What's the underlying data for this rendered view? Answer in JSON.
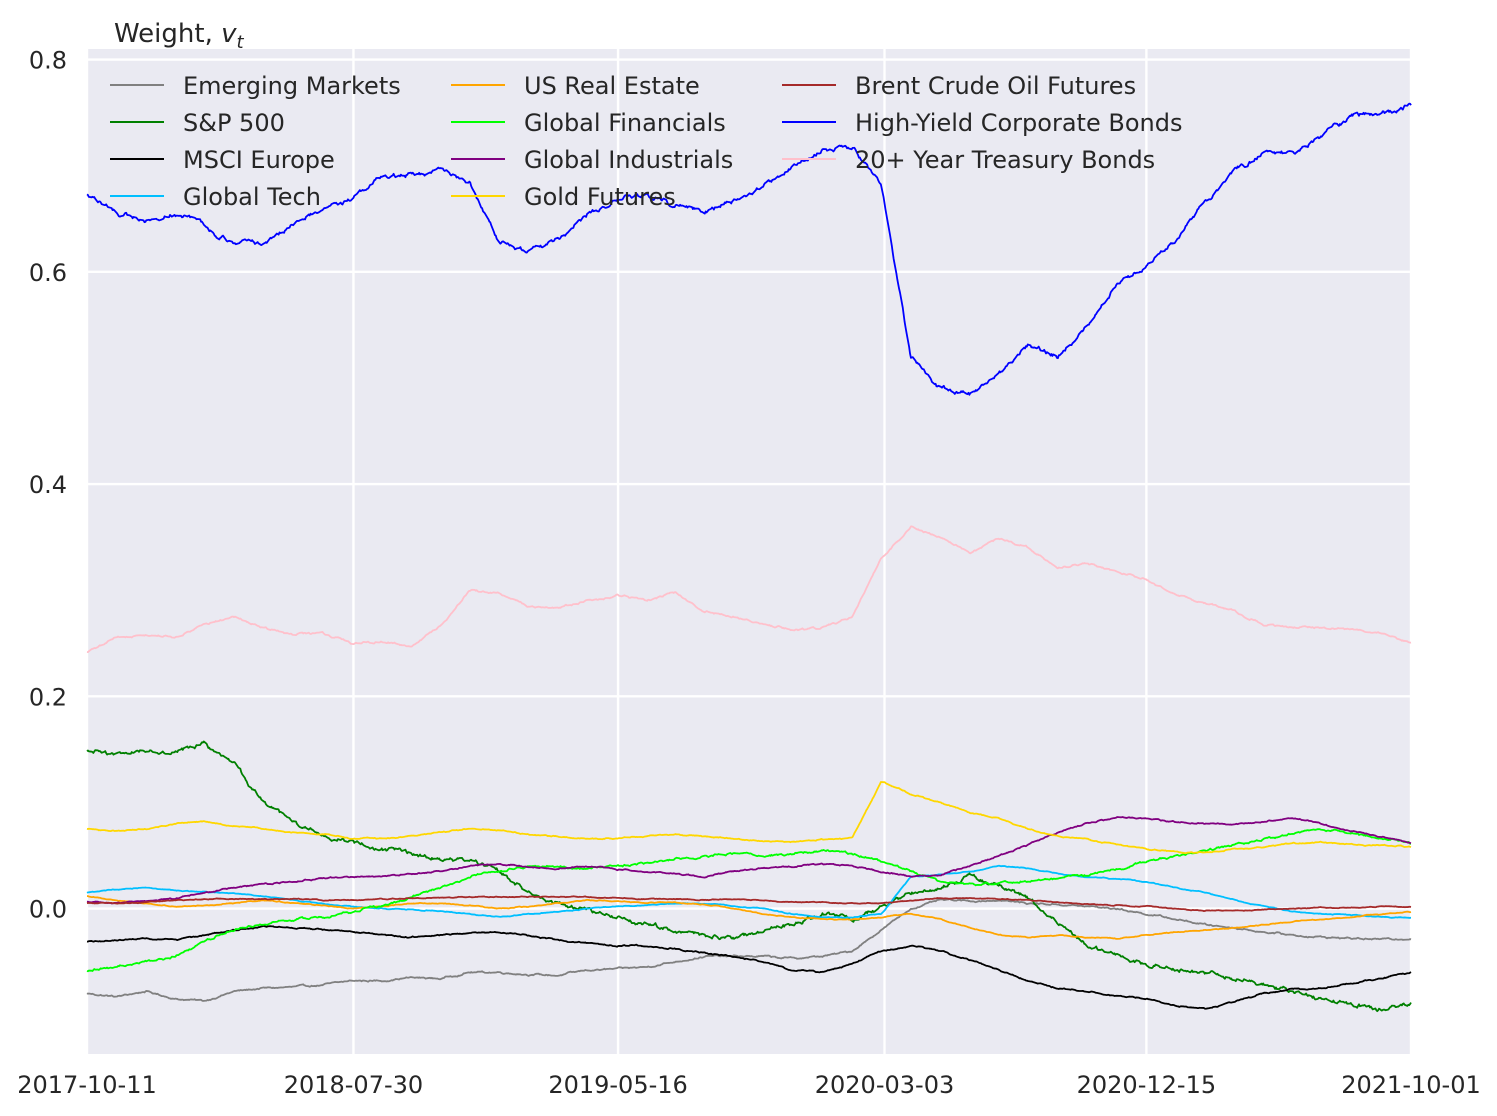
{
  "chart_data": {
    "type": "line",
    "title": "",
    "ylabel_prefix": "Weight, ",
    "ylabel_var": "v",
    "ylabel_sub": "t",
    "xlabel": "",
    "x_start": "2017-10-11",
    "x_end": "2021-10-01",
    "xlim": [
      "2017-10-11",
      "2021-10-01"
    ],
    "ylim": [
      -0.137,
      0.81
    ],
    "x_ticks": [
      "2017-10-11",
      "2018-07-30",
      "2019-05-16",
      "2020-03-03",
      "2020-12-15",
      "2021-10-01"
    ],
    "y_ticks": [
      0.0,
      0.2,
      0.4,
      0.6,
      0.8
    ],
    "y_tick_labels": [
      "0.0",
      "0.2",
      "0.4",
      "0.6",
      "0.8"
    ],
    "grid": true,
    "background": "#eaeaf2",
    "legend_location": "upper-left",
    "legend_columns": 3,
    "series": [
      {
        "name": "Emerging Markets",
        "color": "#808080",
        "values": [
          -0.08,
          -0.083,
          -0.078,
          -0.085,
          -0.087,
          -0.078,
          -0.075,
          -0.074,
          -0.072,
          -0.068,
          -0.068,
          -0.065,
          -0.066,
          -0.06,
          -0.06,
          -0.062,
          -0.063,
          -0.058,
          -0.057,
          -0.055,
          -0.05,
          -0.045,
          -0.045,
          -0.045,
          -0.047,
          -0.045,
          -0.04,
          -0.02,
          0.0,
          0.008,
          0.007,
          0.008,
          0.005,
          0.004,
          0.002,
          0.0,
          -0.005,
          -0.01,
          -0.015,
          -0.018,
          -0.022,
          -0.025,
          -0.027,
          -0.028,
          -0.029,
          -0.028
        ]
      },
      {
        "name": "S&P 500",
        "color": "#008000",
        "values": [
          0.148,
          0.145,
          0.15,
          0.148,
          0.155,
          0.135,
          0.1,
          0.08,
          0.07,
          0.062,
          0.056,
          0.052,
          0.047,
          0.045,
          0.035,
          0.015,
          0.005,
          0.0,
          -0.01,
          -0.015,
          -0.02,
          -0.025,
          -0.03,
          -0.02,
          -0.015,
          -0.005,
          -0.01,
          0.0,
          0.015,
          0.02,
          0.03,
          0.022,
          0.01,
          -0.015,
          -0.035,
          -0.045,
          -0.052,
          -0.055,
          -0.06,
          -0.065,
          -0.072,
          -0.078,
          -0.085,
          -0.09,
          -0.095,
          -0.09
        ]
      },
      {
        "name": "MSCI Europe",
        "color": "#000000",
        "values": [
          -0.031,
          -0.03,
          -0.028,
          -0.03,
          -0.025,
          -0.02,
          -0.017,
          -0.018,
          -0.02,
          -0.022,
          -0.025,
          -0.027,
          -0.025,
          -0.023,
          -0.022,
          -0.025,
          -0.03,
          -0.032,
          -0.035,
          -0.035,
          -0.038,
          -0.042,
          -0.045,
          -0.05,
          -0.058,
          -0.06,
          -0.052,
          -0.04,
          -0.035,
          -0.04,
          -0.048,
          -0.058,
          -0.068,
          -0.075,
          -0.078,
          -0.082,
          -0.085,
          -0.092,
          -0.095,
          -0.088,
          -0.08,
          -0.076,
          -0.075,
          -0.07,
          -0.066,
          -0.06
        ]
      },
      {
        "name": "Global Tech",
        "color": "#00bfff",
        "values": [
          0.015,
          0.018,
          0.02,
          0.017,
          0.016,
          0.014,
          0.012,
          0.008,
          0.005,
          0.002,
          0.0,
          -0.001,
          -0.002,
          -0.005,
          -0.008,
          -0.005,
          -0.003,
          0.0,
          0.002,
          0.003,
          0.005,
          0.005,
          0.002,
          0.0,
          -0.005,
          -0.008,
          -0.008,
          -0.005,
          0.03,
          0.032,
          0.035,
          0.04,
          0.038,
          0.033,
          0.03,
          0.028,
          0.025,
          0.02,
          0.015,
          0.008,
          0.002,
          -0.003,
          -0.005,
          -0.006,
          -0.008,
          -0.009
        ]
      },
      {
        "name": "US Real Estate",
        "color": "#ffa500",
        "values": [
          0.012,
          0.008,
          0.005,
          0.002,
          0.003,
          0.005,
          0.008,
          0.005,
          0.003,
          0.0,
          0.002,
          0.005,
          0.005,
          0.003,
          0.0,
          0.002,
          0.005,
          0.008,
          0.007,
          0.005,
          0.006,
          0.004,
          0.0,
          -0.005,
          -0.008,
          -0.01,
          -0.01,
          -0.008,
          -0.005,
          -0.01,
          -0.018,
          -0.025,
          -0.027,
          -0.025,
          -0.027,
          -0.028,
          -0.025,
          -0.022,
          -0.02,
          -0.018,
          -0.015,
          -0.012,
          -0.01,
          -0.008,
          -0.005,
          -0.003
        ]
      },
      {
        "name": "Global Financials",
        "color": "#00ff00",
        "values": [
          -0.058,
          -0.055,
          -0.05,
          -0.045,
          -0.03,
          -0.02,
          -0.015,
          -0.01,
          -0.008,
          -0.003,
          0.003,
          0.01,
          0.02,
          0.03,
          0.035,
          0.04,
          0.04,
          0.038,
          0.04,
          0.043,
          0.047,
          0.05,
          0.052,
          0.05,
          0.052,
          0.055,
          0.052,
          0.045,
          0.035,
          0.025,
          0.022,
          0.025,
          0.027,
          0.028,
          0.032,
          0.038,
          0.044,
          0.05,
          0.055,
          0.06,
          0.065,
          0.07,
          0.075,
          0.07,
          0.066,
          0.062
        ]
      },
      {
        "name": "Global Industrials",
        "color": "#800080",
        "values": [
          0.006,
          0.005,
          0.007,
          0.01,
          0.015,
          0.02,
          0.023,
          0.026,
          0.028,
          0.03,
          0.03,
          0.033,
          0.035,
          0.04,
          0.042,
          0.04,
          0.038,
          0.04,
          0.037,
          0.035,
          0.033,
          0.03,
          0.035,
          0.038,
          0.04,
          0.042,
          0.04,
          0.035,
          0.03,
          0.032,
          0.04,
          0.05,
          0.06,
          0.072,
          0.08,
          0.086,
          0.085,
          0.082,
          0.08,
          0.08,
          0.082,
          0.085,
          0.08,
          0.073,
          0.068,
          0.062
        ]
      },
      {
        "name": "Gold Futures",
        "color": "#ffd700",
        "values": [
          0.075,
          0.073,
          0.075,
          0.08,
          0.082,
          0.078,
          0.075,
          0.072,
          0.07,
          0.066,
          0.066,
          0.068,
          0.072,
          0.075,
          0.074,
          0.07,
          0.068,
          0.066,
          0.066,
          0.068,
          0.07,
          0.068,
          0.066,
          0.063,
          0.063,
          0.065,
          0.066,
          0.12,
          0.108,
          0.1,
          0.09,
          0.085,
          0.075,
          0.068,
          0.065,
          0.06,
          0.056,
          0.053,
          0.053,
          0.056,
          0.058,
          0.062,
          0.062,
          0.06,
          0.06,
          0.058
        ]
      },
      {
        "name": "Brent Crude Oil Futures",
        "color": "#a52a2a",
        "values": [
          0.005,
          0.005,
          0.006,
          0.008,
          0.009,
          0.009,
          0.009,
          0.009,
          0.008,
          0.008,
          0.009,
          0.01,
          0.01,
          0.011,
          0.011,
          0.011,
          0.011,
          0.011,
          0.01,
          0.009,
          0.009,
          0.008,
          0.009,
          0.008,
          0.006,
          0.006,
          0.005,
          0.005,
          0.008,
          0.01,
          0.01,
          0.009,
          0.008,
          0.006,
          0.004,
          0.003,
          0.002,
          0.0,
          -0.002,
          -0.002,
          -0.001,
          0.0,
          0.001,
          0.001,
          0.002,
          0.002
        ]
      },
      {
        "name": "High-Yield Corporate Bonds",
        "color": "#0000ff",
        "values": [
          0.673,
          0.655,
          0.648,
          0.655,
          0.643,
          0.625,
          0.628,
          0.645,
          0.66,
          0.668,
          0.69,
          0.692,
          0.695,
          0.683,
          0.63,
          0.618,
          0.63,
          0.655,
          0.668,
          0.672,
          0.663,
          0.658,
          0.666,
          0.682,
          0.7,
          0.715,
          0.718,
          0.68,
          0.52,
          0.49,
          0.485,
          0.505,
          0.53,
          0.52,
          0.55,
          0.59,
          0.605,
          0.63,
          0.665,
          0.695,
          0.712,
          0.712,
          0.728,
          0.748,
          0.748,
          0.758
        ]
      },
      {
        "name": "20+ Year Treasury Bonds",
        "color": "#ffc0cb",
        "values": [
          0.242,
          0.255,
          0.258,
          0.255,
          0.268,
          0.275,
          0.265,
          0.258,
          0.26,
          0.25,
          0.252,
          0.248,
          0.265,
          0.3,
          0.298,
          0.285,
          0.283,
          0.29,
          0.295,
          0.29,
          0.298,
          0.28,
          0.275,
          0.268,
          0.262,
          0.265,
          0.275,
          0.33,
          0.36,
          0.35,
          0.335,
          0.348,
          0.34,
          0.322,
          0.325,
          0.318,
          0.31,
          0.295,
          0.288,
          0.28,
          0.268,
          0.265,
          0.265,
          0.262,
          0.26,
          0.25
        ]
      }
    ]
  }
}
